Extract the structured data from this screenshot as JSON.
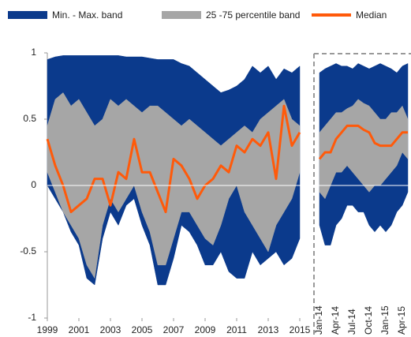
{
  "chart_data": [
    {
      "type": "band",
      "x": [
        1999,
        1999.5,
        2000,
        2000.5,
        2001,
        2001.5,
        2002,
        2002.5,
        2003,
        2003.5,
        2004,
        2004.5,
        2005,
        2005.5,
        2006,
        2006.5,
        2007,
        2007.5,
        2008,
        2008.5,
        2009,
        2009.5,
        2010,
        2010.5,
        2011,
        2011.5,
        2012,
        2012.5,
        2013,
        2013.5,
        2014,
        2014.5,
        2015
      ],
      "xlim": [
        1999,
        2015.25
      ],
      "xticks": [
        1999,
        2001,
        2003,
        2005,
        2007,
        2009,
        2011,
        2013,
        2015
      ],
      "ylim": [
        -1,
        1
      ],
      "yticks": [
        -1,
        -0.5,
        0,
        0.5,
        1
      ],
      "series": [
        {
          "name": "Min. - Max. band",
          "color": "#0b3a8c",
          "low": [
            0,
            -0.1,
            -0.2,
            -0.35,
            -0.45,
            -0.7,
            -0.75,
            -0.4,
            -0.2,
            -0.3,
            -0.15,
            -0.1,
            -0.3,
            -0.45,
            -0.75,
            -0.75,
            -0.55,
            -0.3,
            -0.35,
            -0.45,
            -0.6,
            -0.6,
            -0.5,
            -0.65,
            -0.7,
            -0.7,
            -0.5,
            -0.6,
            -0.55,
            -0.5,
            -0.6,
            -0.55,
            -0.4
          ],
          "high": [
            0.95,
            0.97,
            0.98,
            0.98,
            0.98,
            0.98,
            0.98,
            0.98,
            0.98,
            0.98,
            0.97,
            0.97,
            0.97,
            0.96,
            0.95,
            0.95,
            0.95,
            0.92,
            0.9,
            0.85,
            0.8,
            0.75,
            0.7,
            0.72,
            0.75,
            0.8,
            0.9,
            0.85,
            0.9,
            0.8,
            0.88,
            0.85,
            0.9
          ]
        },
        {
          "name": "25 -75 percentile band",
          "color": "#a6a6a6",
          "low": [
            0.1,
            -0.05,
            -0.2,
            -0.3,
            -0.4,
            -0.6,
            -0.7,
            -0.3,
            -0.1,
            -0.2,
            -0.1,
            0,
            -0.2,
            -0.35,
            -0.6,
            -0.6,
            -0.4,
            -0.2,
            -0.2,
            -0.3,
            -0.4,
            -0.45,
            -0.3,
            -0.1,
            0,
            -0.2,
            -0.3,
            -0.4,
            -0.5,
            -0.3,
            -0.2,
            -0.1,
            0.1
          ],
          "high": [
            0.45,
            0.65,
            0.7,
            0.6,
            0.65,
            0.55,
            0.45,
            0.5,
            0.65,
            0.6,
            0.65,
            0.6,
            0.55,
            0.6,
            0.6,
            0.55,
            0.5,
            0.45,
            0.5,
            0.45,
            0.4,
            0.35,
            0.3,
            0.35,
            0.4,
            0.45,
            0.4,
            0.5,
            0.55,
            0.6,
            0.65,
            0.5,
            0.45
          ]
        },
        {
          "name": "Median",
          "color": "#ff5a0a",
          "values": [
            0.35,
            0.15,
            0,
            -0.2,
            -0.15,
            -0.1,
            0.05,
            0.05,
            -0.15,
            0.1,
            0.05,
            0.35,
            0.1,
            0.1,
            -0.05,
            -0.2,
            0.2,
            0.15,
            0.05,
            -0.1,
            0,
            0.05,
            0.15,
            0.1,
            0.3,
            0.25,
            0.35,
            0.3,
            0.4,
            0.05,
            0.6,
            0.3,
            0.4
          ]
        }
      ]
    },
    {
      "type": "band",
      "categories": [
        "Jan-14",
        null,
        null,
        "Apr-14",
        null,
        null,
        "Jul-14",
        null,
        null,
        "Oct-14",
        null,
        null,
        "Jan-15",
        null,
        null,
        "Apr-15",
        null
      ],
      "ylim": [
        -1,
        1
      ],
      "series": [
        {
          "color": "#0b3a8c",
          "low": [
            -0.3,
            -0.45,
            -0.45,
            -0.3,
            -0.25,
            -0.15,
            -0.15,
            -0.2,
            -0.2,
            -0.3,
            -0.35,
            -0.3,
            -0.35,
            -0.3,
            -0.2,
            -0.15,
            -0.05
          ],
          "high": [
            0.85,
            0.88,
            0.9,
            0.92,
            0.9,
            0.9,
            0.88,
            0.92,
            0.9,
            0.88,
            0.9,
            0.92,
            0.9,
            0.88,
            0.85,
            0.9,
            0.92
          ]
        },
        {
          "color": "#a6a6a6",
          "low": [
            -0.05,
            -0.1,
            0,
            0.1,
            0.1,
            0.15,
            0.1,
            0.05,
            0,
            -0.05,
            0,
            0,
            0.05,
            0.1,
            0.15,
            0.25,
            0.2
          ],
          "high": [
            0.4,
            0.45,
            0.5,
            0.55,
            0.55,
            0.58,
            0.6,
            0.65,
            0.62,
            0.6,
            0.55,
            0.5,
            0.5,
            0.55,
            0.55,
            0.6,
            0.5
          ]
        },
        {
          "color": "#ff5a0a",
          "values": [
            0.2,
            0.25,
            0.25,
            0.35,
            0.4,
            0.45,
            0.45,
            0.45,
            0.42,
            0.4,
            0.32,
            0.3,
            0.3,
            0.3,
            0.35,
            0.4,
            0.4
          ]
        }
      ]
    }
  ]
}
